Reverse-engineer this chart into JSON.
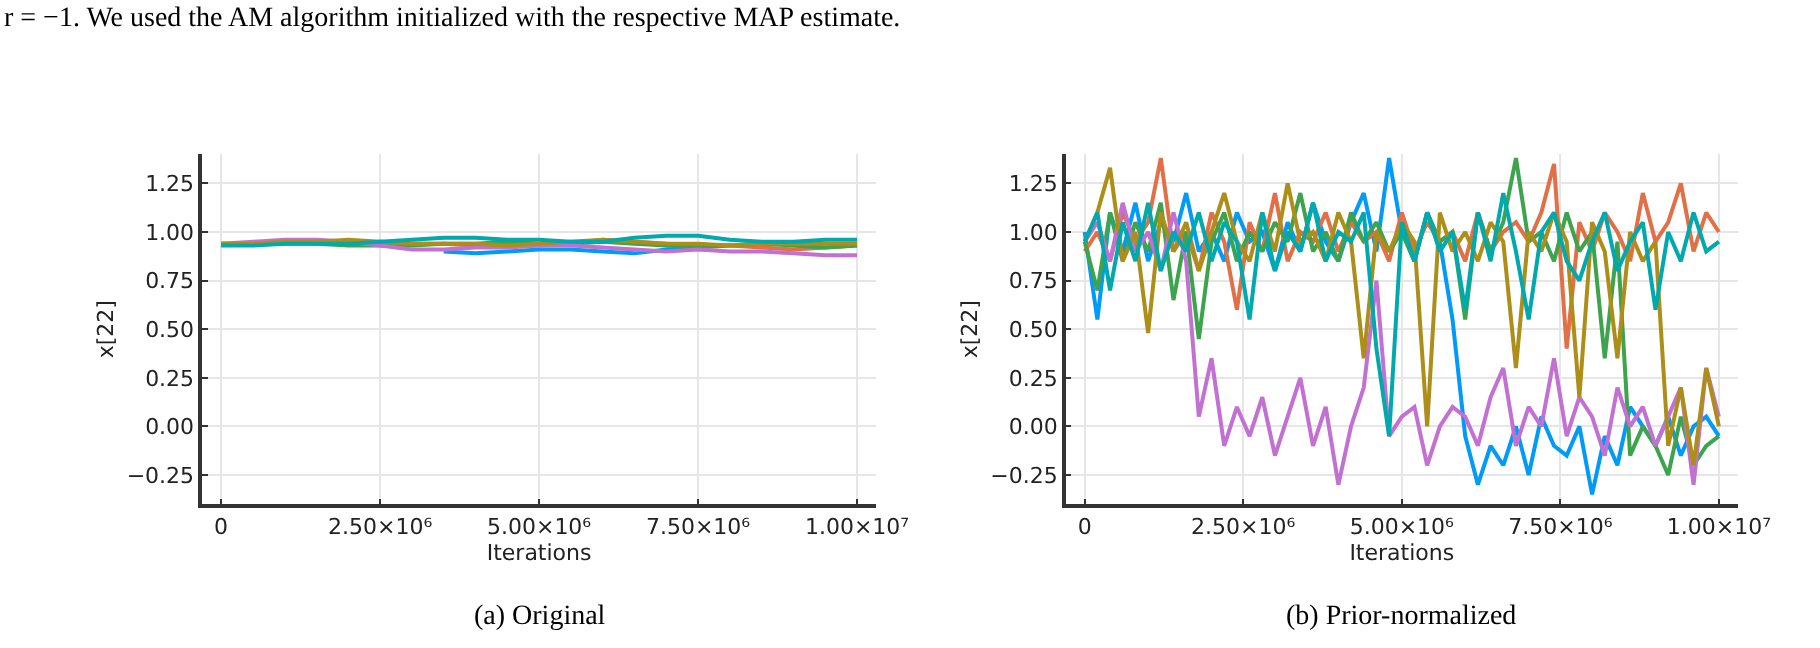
{
  "chart_data": [
    {
      "type": "line",
      "xlabel": "Iterations",
      "ylabel": "x[22]",
      "annotations": [
        "r = −1. We used the AM algorithm initialized with the respective MAP estimate.",
        "(a) Original"
      ],
      "x": [
        0,
        500000,
        1000000,
        1500000,
        2000000,
        2500000,
        3000000,
        3500000,
        4000000,
        4500000,
        5000000,
        5500000,
        6000000,
        6500000,
        7000000,
        7500000,
        8000000,
        8500000,
        9000000,
        9500000,
        10000000
      ],
      "series": [
        {
          "color": "#009af9",
          "values": [
            null,
            null,
            null,
            null,
            null,
            null,
            null,
            0.9,
            0.89,
            0.9,
            0.91,
            0.91,
            0.9,
            0.89,
            0.91,
            0.92,
            null,
            null,
            null,
            null,
            null
          ]
        },
        {
          "color": "#e26f46",
          "values": [
            null,
            null,
            0.95,
            0.95,
            0.94,
            0.95,
            0.94,
            0.94,
            0.93,
            0.94,
            0.93,
            0.94,
            0.96,
            0.95,
            0.94,
            0.93,
            0.93,
            0.92,
            0.91,
            0.92,
            0.93
          ]
        },
        {
          "color": "#3da44d",
          "values": [
            0.94,
            0.94,
            0.94,
            0.94,
            0.93,
            0.93,
            0.93,
            0.94,
            0.94,
            0.95,
            0.94,
            0.94,
            0.95,
            0.94,
            0.93,
            0.92,
            0.93,
            0.94,
            0.93,
            0.92,
            0.93
          ]
        },
        {
          "color": "#c271d2",
          "values": [
            0.94,
            0.95,
            0.96,
            0.96,
            0.95,
            0.93,
            0.91,
            0.91,
            0.92,
            0.92,
            0.93,
            0.93,
            0.92,
            0.91,
            0.9,
            0.91,
            0.9,
            0.9,
            0.89,
            0.88,
            0.88
          ]
        },
        {
          "color": "#ac8e18",
          "values": [
            0.94,
            0.94,
            0.95,
            0.95,
            0.96,
            0.95,
            0.94,
            0.94,
            0.94,
            0.93,
            0.94,
            0.95,
            0.96,
            0.95,
            0.94,
            0.94,
            0.93,
            0.94,
            0.94,
            0.94,
            0.94
          ]
        },
        {
          "color": "#00a9ad",
          "values": [
            0.93,
            0.93,
            0.94,
            0.94,
            0.94,
            0.95,
            0.96,
            0.97,
            0.97,
            0.96,
            0.96,
            0.95,
            0.95,
            0.97,
            0.98,
            0.98,
            0.96,
            0.95,
            0.95,
            0.96,
            0.96
          ]
        }
      ],
      "xlim": [
        -300000,
        10300000
      ],
      "ylim": [
        -0.4,
        1.4
      ],
      "xticks": [
        0,
        {
          "value": 2500000,
          "label": "2.50×10⁶"
        },
        {
          "value": 5000000,
          "label": "5.00×10⁶"
        },
        {
          "value": 7500000,
          "label": "7.50×10⁶"
        },
        {
          "value": 10000000,
          "label": "1.00×10⁷"
        }
      ],
      "yticks": [
        {
          "value": -0.25,
          "label": "−0.25"
        },
        {
          "value": 0,
          "label": "0.00"
        },
        {
          "value": 0.25,
          "label": "0.25"
        },
        {
          "value": 0.5,
          "label": "0.50"
        },
        {
          "value": 0.75,
          "label": "0.75"
        },
        {
          "value": 1,
          "label": "1.00"
        },
        {
          "value": 1.25,
          "label": "1.25"
        }
      ],
      "grid": true,
      "line_style": "solid",
      "marker": "none"
    },
    {
      "type": "line",
      "xlabel": "Iterations",
      "ylabel": "x[22]",
      "annotations": [
        "(b) Prior-normalized"
      ],
      "x": [
        0,
        200000,
        400000,
        600000,
        800000,
        1000000,
        1200000,
        1400000,
        1600000,
        1800000,
        2000000,
        2200000,
        2400000,
        2600000,
        2800000,
        3000000,
        3200000,
        3400000,
        3600000,
        3800000,
        4000000,
        4200000,
        4400000,
        4600000,
        4800000,
        5000000,
        5200000,
        5400000,
        5600000,
        5800000,
        6000000,
        6200000,
        6400000,
        6600000,
        6800000,
        7000000,
        7200000,
        7400000,
        7600000,
        7800000,
        8000000,
        8200000,
        8400000,
        8600000,
        8800000,
        9000000,
        9200000,
        9400000,
        9600000,
        9800000,
        10000000
      ],
      "series": [
        {
          "color": "#009af9",
          "values": [
            1.0,
            0.55,
            1.1,
            0.9,
            1.15,
            0.85,
            1.05,
            0.95,
            1.2,
            0.9,
            1.0,
            0.85,
            1.1,
            0.95,
            1.0,
            0.8,
            1.05,
            0.9,
            1.15,
            0.95,
            0.85,
            1.05,
            1.2,
            0.9,
            1.38,
            1.0,
            0.85,
            1.1,
            0.95,
            0.55,
            -0.05,
            -0.3,
            -0.1,
            -0.2,
            0.0,
            -0.25,
            0.05,
            -0.1,
            -0.15,
            0.0,
            -0.35,
            -0.05,
            -0.2,
            0.1,
            0.0,
            -0.1,
            0.05,
            -0.15,
            0.0,
            0.05,
            -0.05
          ]
        },
        {
          "color": "#e26f46",
          "values": [
            0.9,
            1.0,
            0.85,
            1.1,
            0.95,
            1.05,
            1.38,
            0.9,
            1.0,
            0.8,
            1.1,
            0.95,
            0.6,
            1.05,
            0.9,
            1.2,
            0.85,
            1.0,
            0.95,
            1.1,
            0.9,
            1.05,
            0.95,
            1.0,
            0.85,
            1.1,
            0.9,
            1.05,
            0.95,
            1.0,
            0.85,
            1.1,
            0.9,
            1.0,
            1.05,
            0.95,
            1.1,
            1.35,
            0.4,
            1.05,
            0.9,
            1.1,
            1.0,
            0.85,
            1.2,
            0.95,
            1.05,
            1.25,
            0.9,
            1.1,
            1.0
          ]
        },
        {
          "color": "#3da44d",
          "values": [
            0.95,
            0.7,
            1.1,
            0.85,
            1.05,
            0.9,
            1.15,
            0.65,
            1.0,
            0.45,
            0.95,
            1.1,
            0.85,
            1.0,
            0.9,
            1.05,
            0.95,
            1.2,
            0.9,
            1.0,
            0.85,
            1.1,
            0.95,
            1.05,
            0.9,
            1.0,
            0.85,
            1.1,
            0.95,
            1.0,
            0.55,
            1.1,
            0.9,
            1.05,
            1.38,
            0.95,
            1.0,
            0.85,
            1.1,
            0.9,
            1.0,
            0.35,
            0.95,
            -0.15,
            0.0,
            -0.1,
            -0.25,
            0.05,
            -0.2,
            -0.1,
            -0.05
          ]
        },
        {
          "color": "#c271d2",
          "values": [
            0.95,
            1.05,
            0.85,
            1.15,
            0.9,
            1.0,
            0.8,
            1.1,
            0.85,
            0.05,
            0.35,
            -0.1,
            0.1,
            -0.05,
            0.15,
            -0.15,
            0.05,
            0.25,
            -0.1,
            0.1,
            -0.3,
            0.0,
            0.2,
            0.75,
            -0.05,
            0.05,
            0.1,
            -0.2,
            0.0,
            0.1,
            0.05,
            -0.1,
            0.15,
            0.3,
            -0.1,
            0.1,
            0.0,
            0.35,
            -0.05,
            0.15,
            0.05,
            -0.15,
            0.2,
            0.0,
            0.1,
            -0.1,
            0.05,
            0.2,
            -0.3,
            0.3,
            0.05
          ]
        },
        {
          "color": "#ac8e18",
          "values": [
            0.95,
            1.1,
            1.33,
            0.85,
            1.0,
            0.48,
            1.1,
            0.9,
            1.05,
            0.8,
            1.0,
            1.2,
            0.95,
            0.85,
            1.1,
            0.9,
            1.25,
            0.95,
            1.0,
            0.85,
            1.1,
            0.95,
            0.35,
            1.0,
            0.9,
            1.05,
            0.95,
            0.0,
            1.1,
            0.9,
            1.0,
            0.85,
            1.05,
            0.95,
            0.3,
            1.0,
            0.9,
            1.1,
            0.95,
            0.15,
            1.05,
            0.9,
            0.35,
            1.0,
            0.85,
            0.95,
            -0.1,
            0.2,
            -0.2,
            0.3,
            0.0
          ]
        },
        {
          "color": "#00a9ad",
          "values": [
            0.95,
            1.1,
            0.7,
            1.05,
            0.85,
            1.15,
            0.8,
            1.0,
            0.9,
            1.1,
            0.85,
            1.05,
            0.95,
            0.55,
            1.1,
            0.8,
            1.0,
            0.9,
            1.15,
            0.85,
            1.0,
            0.95,
            1.1,
            0.4,
            -0.05,
            1.05,
            0.85,
            1.1,
            0.9,
            1.0,
            0.6,
            1.1,
            0.85,
            1.2,
            0.9,
            0.55,
            1.0,
            1.1,
            0.85,
            0.75,
            0.95,
            1.1,
            0.8,
            0.95,
            1.05,
            0.6,
            1.0,
            0.85,
            1.1,
            0.9,
            0.95
          ]
        }
      ],
      "xlim": [
        -300000,
        10300000
      ],
      "ylim": [
        -0.4,
        1.4
      ],
      "xticks": [
        0,
        {
          "value": 2500000,
          "label": "2.50×10⁶"
        },
        {
          "value": 5000000,
          "label": "5.00×10⁶"
        },
        {
          "value": 7500000,
          "label": "7.50×10⁶"
        },
        {
          "value": 10000000,
          "label": "1.00×10⁷"
        }
      ],
      "yticks": [
        {
          "value": -0.25,
          "label": "−0.25"
        },
        {
          "value": 0,
          "label": "0.00"
        },
        {
          "value": 0.25,
          "label": "0.25"
        },
        {
          "value": 0.5,
          "label": "0.50"
        },
        {
          "value": 0.75,
          "label": "0.75"
        },
        {
          "value": 1,
          "label": "1.00"
        },
        {
          "value": 1.25,
          "label": "1.25"
        }
      ],
      "grid": true,
      "line_style": "solid",
      "marker": "none"
    }
  ]
}
